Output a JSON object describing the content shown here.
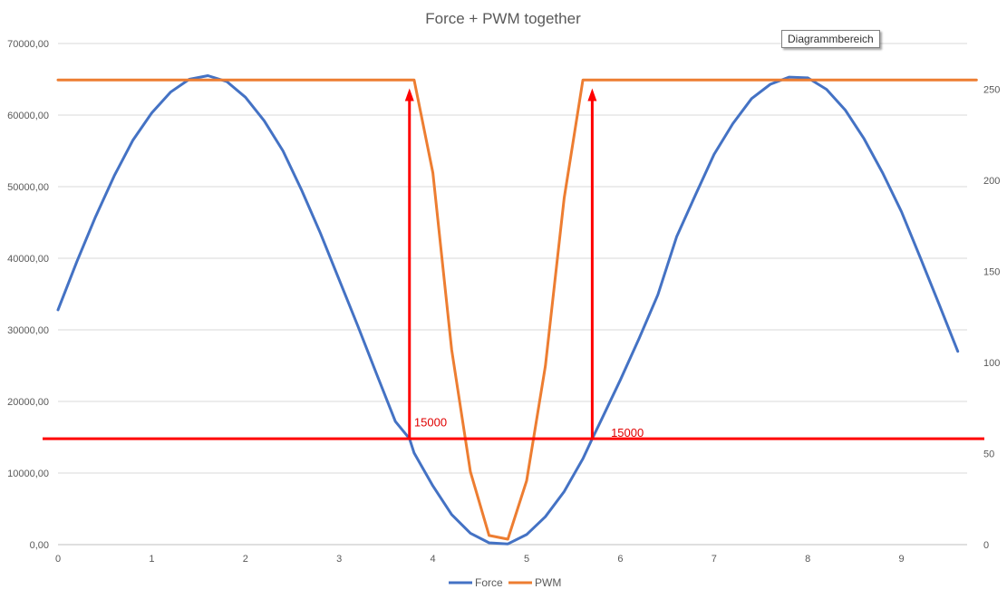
{
  "chart_data": {
    "type": "line",
    "title": "Force + PWM together",
    "x_ticks": [
      "0",
      "1",
      "2",
      "3",
      "4",
      "5",
      "6",
      "7",
      "8",
      "9"
    ],
    "xlim": [
      0,
      9.7
    ],
    "y_left": {
      "ticks": [
        "0,00",
        "10000,00",
        "20000,00",
        "30000,00",
        "40000,00",
        "50000,00",
        "60000,00",
        "70000,00"
      ],
      "ylim": [
        0,
        70000
      ]
    },
    "y_right": {
      "ticks": [
        "0",
        "50",
        "100",
        "150",
        "200",
        "250"
      ],
      "ylim": [
        0,
        275
      ]
    },
    "grid": true,
    "legend_position": "bottom",
    "series": [
      {
        "name": "Force",
        "axis": "left",
        "color": "#4472c4",
        "x": [
          0,
          0.2,
          0.4,
          0.6,
          0.8,
          1.0,
          1.2,
          1.4,
          1.6,
          1.8,
          2.0,
          2.2,
          2.4,
          2.6,
          2.8,
          3.0,
          3.2,
          3.4,
          3.6,
          3.75,
          3.8,
          4.0,
          4.2,
          4.4,
          4.6,
          4.8,
          5.0,
          5.2,
          5.4,
          5.6,
          5.7,
          5.8,
          6.0,
          6.2,
          6.4,
          6.6,
          6.8,
          7.0,
          7.2,
          7.4,
          7.6,
          7.8,
          8.0,
          8.2,
          8.4,
          8.6,
          8.8,
          9.0,
          9.2,
          9.4,
          9.6
        ],
        "values": [
          32800,
          39500,
          45800,
          51500,
          56500,
          60300,
          63200,
          65000,
          65500,
          64700,
          62500,
          59200,
          55000,
          49500,
          43500,
          37000,
          30500,
          23800,
          17200,
          14800,
          12800,
          8200,
          4200,
          1600,
          250,
          100,
          1400,
          3900,
          7400,
          12000,
          14800,
          17500,
          23000,
          28800,
          34900,
          43000,
          48800,
          54500,
          58800,
          62300,
          64300,
          65300,
          65200,
          63600,
          60700,
          56700,
          51900,
          46500,
          40100,
          33600,
          27000
        ]
      },
      {
        "name": "PWM",
        "axis": "right",
        "color": "#ed7d31",
        "x": [
          0,
          0.2,
          0.4,
          0.6,
          0.8,
          1.0,
          1.2,
          1.4,
          1.6,
          1.8,
          2.0,
          2.2,
          2.4,
          2.6,
          2.8,
          3.0,
          3.2,
          3.4,
          3.6,
          3.8,
          4.0,
          4.2,
          4.4,
          4.6,
          4.8,
          5.0,
          5.2,
          5.4,
          5.6,
          5.8,
          6.0,
          6.2,
          6.4,
          6.6,
          6.8,
          7.0,
          7.2,
          7.4,
          7.6,
          7.8,
          8.0,
          8.2,
          8.4,
          8.6,
          8.8,
          9.0,
          9.2,
          9.4,
          9.6,
          9.8
        ],
        "values": [
          255,
          255,
          255,
          255,
          255,
          255,
          255,
          255,
          255,
          255,
          255,
          255,
          255,
          255,
          255,
          255,
          255,
          255,
          255,
          255,
          204,
          107,
          40,
          5,
          3,
          35,
          98,
          190,
          255,
          255,
          255,
          255,
          255,
          255,
          255,
          255,
          255,
          255,
          255,
          255,
          255,
          255,
          255,
          255,
          255,
          255,
          255,
          255,
          255,
          255
        ]
      }
    ],
    "annotations": [
      {
        "type": "hline",
        "y": 14800,
        "axis": "left",
        "color": "#ff0000"
      },
      {
        "type": "arrow",
        "x": 3.75,
        "y_from": 14800,
        "y_to": 65500,
        "axis": "left",
        "color": "#ff0000"
      },
      {
        "type": "arrow",
        "x": 5.7,
        "y_from": 14800,
        "y_to": 65500,
        "axis": "left",
        "color": "#ff0000"
      },
      {
        "type": "label",
        "text": "15000",
        "x": 3.8,
        "y": 17000
      },
      {
        "type": "label",
        "text": "15000",
        "x": 5.9,
        "y": 15600
      }
    ],
    "tooltip_text": "Diagrammbereich"
  }
}
